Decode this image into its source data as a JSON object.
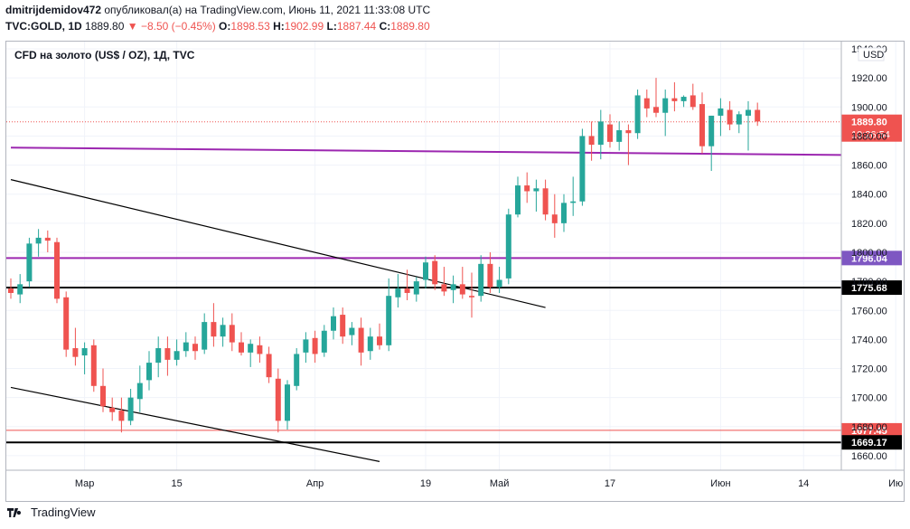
{
  "header": {
    "author": "dmitrijdemidov472",
    "published_text": "опубликовал(а) на TradingView.com, Июнь 11, 2021 11:33:08 UTC",
    "symbol_line": "TVC:GOLD, 1D",
    "last_price": "1889.80",
    "change": "▼ −8.50 (−0.45%)",
    "o_label": "O:",
    "o_value": "1898.53",
    "h_label": "H:",
    "h_value": "1902.99",
    "l_label": "L:",
    "l_value": "1887.44",
    "c_label": "C:",
    "c_value": "1889.80"
  },
  "chart_title": "CFD на золото (US$ / OZ), 1Д, TVC",
  "currency": "USD",
  "footer": {
    "brand": "TradingView"
  },
  "colors": {
    "up": "#26a69a",
    "down": "#ef5350",
    "purple": "#9c27b0",
    "black": "#000000",
    "grid": "#f0f3fa",
    "axis_text": "#131722"
  },
  "chart_data": {
    "type": "candlestick",
    "title": "CFD на золото (US$ / OZ), 1Д, TVC",
    "ylim": [
      1650,
      1945
    ],
    "y_ticks": [
      1660,
      1680,
      1700,
      1720,
      1740,
      1760,
      1780,
      1800,
      1820,
      1840,
      1860,
      1880,
      1900,
      1920,
      1940
    ],
    "x_ticks": [
      {
        "label": "Мар",
        "index": 8
      },
      {
        "label": "15",
        "index": 18
      },
      {
        "label": "Апр",
        "index": 33
      },
      {
        "label": "19",
        "index": 45
      },
      {
        "label": "Май",
        "index": 53
      },
      {
        "label": "17",
        "index": 65
      },
      {
        "label": "Июн",
        "index": 77
      },
      {
        "label": "14",
        "index": 86
      },
      {
        "label": "Ию",
        "index": 96
      }
    ],
    "candles": [
      {
        "o": 1775,
        "h": 1782,
        "l": 1768,
        "c": 1772
      },
      {
        "o": 1771,
        "h": 1785,
        "l": 1765,
        "c": 1778
      },
      {
        "o": 1780,
        "h": 1810,
        "l": 1776,
        "c": 1806
      },
      {
        "o": 1806,
        "h": 1816,
        "l": 1797,
        "c": 1810
      },
      {
        "o": 1810,
        "h": 1815,
        "l": 1800,
        "c": 1808
      },
      {
        "o": 1807,
        "h": 1810,
        "l": 1765,
        "c": 1768
      },
      {
        "o": 1769,
        "h": 1773,
        "l": 1728,
        "c": 1733
      },
      {
        "o": 1734,
        "h": 1748,
        "l": 1722,
        "c": 1728
      },
      {
        "o": 1729,
        "h": 1738,
        "l": 1716,
        "c": 1734
      },
      {
        "o": 1736,
        "h": 1740,
        "l": 1704,
        "c": 1708
      },
      {
        "o": 1708,
        "h": 1720,
        "l": 1690,
        "c": 1694
      },
      {
        "o": 1693,
        "h": 1700,
        "l": 1684,
        "c": 1690
      },
      {
        "o": 1691,
        "h": 1700,
        "l": 1676,
        "c": 1684
      },
      {
        "o": 1684,
        "h": 1706,
        "l": 1681,
        "c": 1700
      },
      {
        "o": 1699,
        "h": 1722,
        "l": 1690,
        "c": 1710
      },
      {
        "o": 1712,
        "h": 1732,
        "l": 1705,
        "c": 1724
      },
      {
        "o": 1724,
        "h": 1742,
        "l": 1714,
        "c": 1734
      },
      {
        "o": 1734,
        "h": 1742,
        "l": 1715,
        "c": 1726
      },
      {
        "o": 1726,
        "h": 1740,
        "l": 1722,
        "c": 1732
      },
      {
        "o": 1732,
        "h": 1745,
        "l": 1728,
        "c": 1738
      },
      {
        "o": 1737,
        "h": 1742,
        "l": 1726,
        "c": 1732
      },
      {
        "o": 1733,
        "h": 1758,
        "l": 1730,
        "c": 1752
      },
      {
        "o": 1752,
        "h": 1765,
        "l": 1735,
        "c": 1742
      },
      {
        "o": 1742,
        "h": 1755,
        "l": 1735,
        "c": 1750
      },
      {
        "o": 1750,
        "h": 1758,
        "l": 1732,
        "c": 1738
      },
      {
        "o": 1738,
        "h": 1745,
        "l": 1729,
        "c": 1731
      },
      {
        "o": 1731,
        "h": 1740,
        "l": 1721,
        "c": 1737
      },
      {
        "o": 1736,
        "h": 1742,
        "l": 1724,
        "c": 1730
      },
      {
        "o": 1730,
        "h": 1735,
        "l": 1710,
        "c": 1714
      },
      {
        "o": 1713,
        "h": 1720,
        "l": 1676,
        "c": 1684
      },
      {
        "o": 1684,
        "h": 1712,
        "l": 1678,
        "c": 1709
      },
      {
        "o": 1708,
        "h": 1734,
        "l": 1705,
        "c": 1730
      },
      {
        "o": 1731,
        "h": 1745,
        "l": 1724,
        "c": 1740
      },
      {
        "o": 1741,
        "h": 1746,
        "l": 1724,
        "c": 1730
      },
      {
        "o": 1731,
        "h": 1750,
        "l": 1728,
        "c": 1746
      },
      {
        "o": 1746,
        "h": 1762,
        "l": 1740,
        "c": 1756
      },
      {
        "o": 1757,
        "h": 1762,
        "l": 1737,
        "c": 1742
      },
      {
        "o": 1743,
        "h": 1752,
        "l": 1736,
        "c": 1748
      },
      {
        "o": 1748,
        "h": 1755,
        "l": 1722,
        "c": 1731
      },
      {
        "o": 1732,
        "h": 1748,
        "l": 1726,
        "c": 1742
      },
      {
        "o": 1742,
        "h": 1751,
        "l": 1733,
        "c": 1736
      },
      {
        "o": 1736,
        "h": 1782,
        "l": 1732,
        "c": 1770
      },
      {
        "o": 1769,
        "h": 1785,
        "l": 1762,
        "c": 1775
      },
      {
        "o": 1775,
        "h": 1788,
        "l": 1767,
        "c": 1772
      },
      {
        "o": 1771,
        "h": 1783,
        "l": 1766,
        "c": 1780
      },
      {
        "o": 1781,
        "h": 1797,
        "l": 1775,
        "c": 1793
      },
      {
        "o": 1794,
        "h": 1798,
        "l": 1774,
        "c": 1778
      },
      {
        "o": 1778,
        "h": 1790,
        "l": 1770,
        "c": 1773
      },
      {
        "o": 1774,
        "h": 1784,
        "l": 1765,
        "c": 1778
      },
      {
        "o": 1778,
        "h": 1790,
        "l": 1768,
        "c": 1771
      },
      {
        "o": 1770,
        "h": 1786,
        "l": 1755,
        "c": 1769
      },
      {
        "o": 1770,
        "h": 1798,
        "l": 1766,
        "c": 1792
      },
      {
        "o": 1792,
        "h": 1800,
        "l": 1772,
        "c": 1776
      },
      {
        "o": 1776,
        "h": 1790,
        "l": 1772,
        "c": 1781
      },
      {
        "o": 1782,
        "h": 1830,
        "l": 1778,
        "c": 1826
      },
      {
        "o": 1826,
        "h": 1852,
        "l": 1824,
        "c": 1846
      },
      {
        "o": 1846,
        "h": 1855,
        "l": 1834,
        "c": 1842
      },
      {
        "o": 1842,
        "h": 1850,
        "l": 1828,
        "c": 1844
      },
      {
        "o": 1844,
        "h": 1850,
        "l": 1822,
        "c": 1826
      },
      {
        "o": 1826,
        "h": 1840,
        "l": 1810,
        "c": 1820
      },
      {
        "o": 1820,
        "h": 1840,
        "l": 1814,
        "c": 1834
      },
      {
        "o": 1834,
        "h": 1852,
        "l": 1825,
        "c": 1835
      },
      {
        "o": 1835,
        "h": 1885,
        "l": 1832,
        "c": 1880
      },
      {
        "o": 1880,
        "h": 1890,
        "l": 1863,
        "c": 1874
      },
      {
        "o": 1874,
        "h": 1898,
        "l": 1864,
        "c": 1890
      },
      {
        "o": 1888,
        "h": 1895,
        "l": 1872,
        "c": 1876
      },
      {
        "o": 1876,
        "h": 1890,
        "l": 1870,
        "c": 1884
      },
      {
        "o": 1884,
        "h": 1888,
        "l": 1860,
        "c": 1882
      },
      {
        "o": 1882,
        "h": 1912,
        "l": 1878,
        "c": 1908
      },
      {
        "o": 1906,
        "h": 1912,
        "l": 1893,
        "c": 1899
      },
      {
        "o": 1900,
        "h": 1920,
        "l": 1893,
        "c": 1896
      },
      {
        "o": 1896,
        "h": 1912,
        "l": 1880,
        "c": 1906
      },
      {
        "o": 1906,
        "h": 1917,
        "l": 1897,
        "c": 1904
      },
      {
        "o": 1904,
        "h": 1908,
        "l": 1900,
        "c": 1907
      },
      {
        "o": 1908,
        "h": 1916,
        "l": 1898,
        "c": 1900
      },
      {
        "o": 1902,
        "h": 1910,
        "l": 1868,
        "c": 1873
      },
      {
        "o": 1873,
        "h": 1894,
        "l": 1856,
        "c": 1894
      },
      {
        "o": 1894,
        "h": 1906,
        "l": 1880,
        "c": 1899
      },
      {
        "o": 1898,
        "h": 1904,
        "l": 1884,
        "c": 1888
      },
      {
        "o": 1888,
        "h": 1897,
        "l": 1882,
        "c": 1895
      },
      {
        "o": 1894,
        "h": 1904,
        "l": 1870,
        "c": 1898
      },
      {
        "o": 1898,
        "h": 1903,
        "l": 1887,
        "c": 1890
      }
    ],
    "horizontal_levels": [
      {
        "value": 1796.04,
        "label": "1796.04",
        "color": "#9c27b0"
      },
      {
        "value": 1775.68,
        "label": "1775.68",
        "color": "#000000"
      },
      {
        "value": 1677.45,
        "label": "1677.45",
        "color": "#ef5350"
      },
      {
        "value": 1669.17,
        "label": "1669.17",
        "color": "#000000"
      }
    ],
    "last_price": {
      "value": 1889.8,
      "label": "1889.80",
      "countdown": "10:26:54",
      "color": "#ef5350"
    },
    "trendlines": [
      {
        "color": "#9c27b0",
        "points": [
          [
            0,
            1872
          ],
          [
            105,
            1867
          ]
        ]
      },
      {
        "color": "#000000",
        "points": [
          [
            0,
            1850
          ],
          [
            58,
            1762
          ]
        ]
      },
      {
        "color": "#000000",
        "points": [
          [
            0,
            1707
          ],
          [
            40,
            1656
          ]
        ]
      }
    ]
  }
}
